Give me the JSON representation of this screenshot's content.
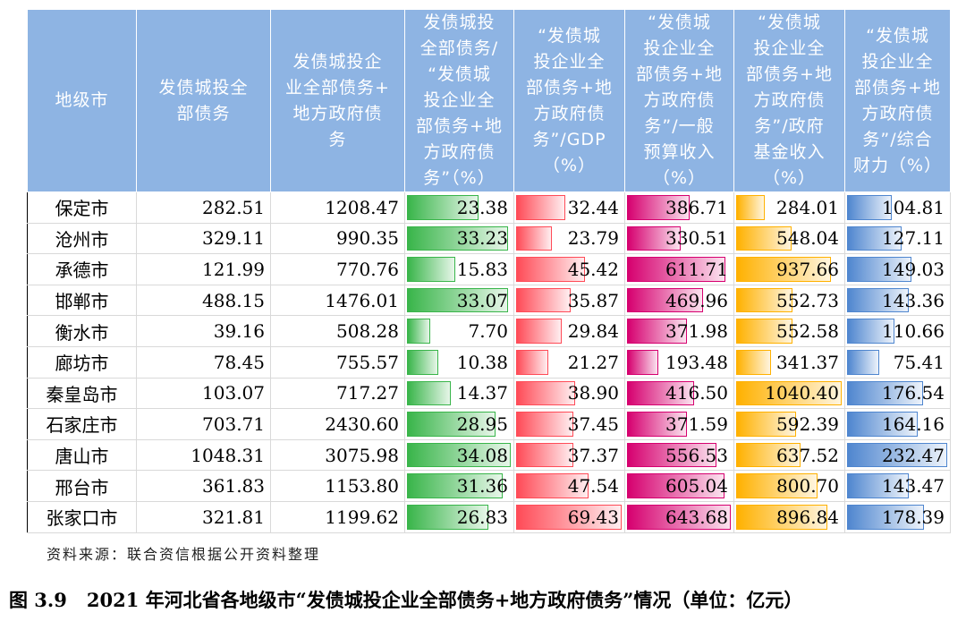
{
  "headers": [
    "地级市",
    "发债城投全\n部债务",
    "发债城投企\n业全部债务+\n地方政府债\n务",
    "发债城投\n全部债务/\n“发债城\n投企业全\n部债务+地\n方政府债\n务”（%）",
    "“发债城\n投企业全\n部债务+地\n方政府债\n务”/GDP\n（%）",
    "“发债城\n投企业全\n部债务+地\n方政府债\n务”/一般\n预算收入\n（%）",
    "“发债城\n投企业全\n部债务+地\n方政府债\n务”/政府\n基金收入\n（%）",
    "“发债城\n投企业全\n部债务+地\n方政府债\n务”/综合\n财力（%）"
  ],
  "rows": [
    {
      "city": "保定市",
      "c1": "282.51",
      "c2": "1208.47",
      "c3": "23.38",
      "c4": "32.44",
      "c5": "386.71",
      "c6": "284.01",
      "c7": "104.81"
    },
    {
      "city": "沧州市",
      "c1": "329.11",
      "c2": "990.35",
      "c3": "33.23",
      "c4": "23.79",
      "c5": "330.51",
      "c6": "548.04",
      "c7": "127.11"
    },
    {
      "city": "承德市",
      "c1": "121.99",
      "c2": "770.76",
      "c3": "15.83",
      "c4": "45.42",
      "c5": "611.71",
      "c6": "937.66",
      "c7": "149.03"
    },
    {
      "city": "邯郸市",
      "c1": "488.15",
      "c2": "1476.01",
      "c3": "33.07",
      "c4": "35.87",
      "c5": "469.96",
      "c6": "552.73",
      "c7": "143.36"
    },
    {
      "city": "衡水市",
      "c1": "39.16",
      "c2": "508.28",
      "c3": "7.70",
      "c4": "29.84",
      "c5": "371.98",
      "c6": "552.58",
      "c7": "110.66"
    },
    {
      "city": "廊坊市",
      "c1": "78.45",
      "c2": "755.57",
      "c3": "10.38",
      "c4": "21.27",
      "c5": "193.48",
      "c6": "341.37",
      "c7": "75.41"
    },
    {
      "city": "秦皇岛市",
      "c1": "103.07",
      "c2": "717.27",
      "c3": "14.37",
      "c4": "38.90",
      "c5": "416.50",
      "c6": "1040.40",
      "c7": "176.54"
    },
    {
      "city": "石家庄市",
      "c1": "703.71",
      "c2": "2430.60",
      "c3": "28.95",
      "c4": "37.45",
      "c5": "371.59",
      "c6": "592.39",
      "c7": "164.16"
    },
    {
      "city": "唐山市",
      "c1": "1048.31",
      "c2": "3075.98",
      "c3": "34.08",
      "c4": "37.37",
      "c5": "556.53",
      "c6": "637.52",
      "c7": "232.47"
    },
    {
      "city": "邢台市",
      "c1": "361.83",
      "c2": "1153.80",
      "c3": "31.36",
      "c4": "47.54",
      "c5": "605.04",
      "c6": "800.70",
      "c7": "143.47"
    },
    {
      "city": "张家口市",
      "c1": "321.81",
      "c2": "1199.62",
      "c3": "26.83",
      "c4": "69.43",
      "c5": "643.68",
      "c6": "896.84",
      "c7": "178.39"
    }
  ],
  "source": "资料来源：联合资信根据公开资料整理",
  "caption_num": "图 3.9",
  "caption_text": "2021 年河北省各地级市“发债城投企业全部债务+地方政府债务”情况（单位：亿元）",
  "bar_colors": {
    "c3": "#39b54a",
    "c4": "#ff4b57",
    "c5": "#d6006f",
    "c6": "#ffb100",
    "c7": "#4f86cf"
  }
}
